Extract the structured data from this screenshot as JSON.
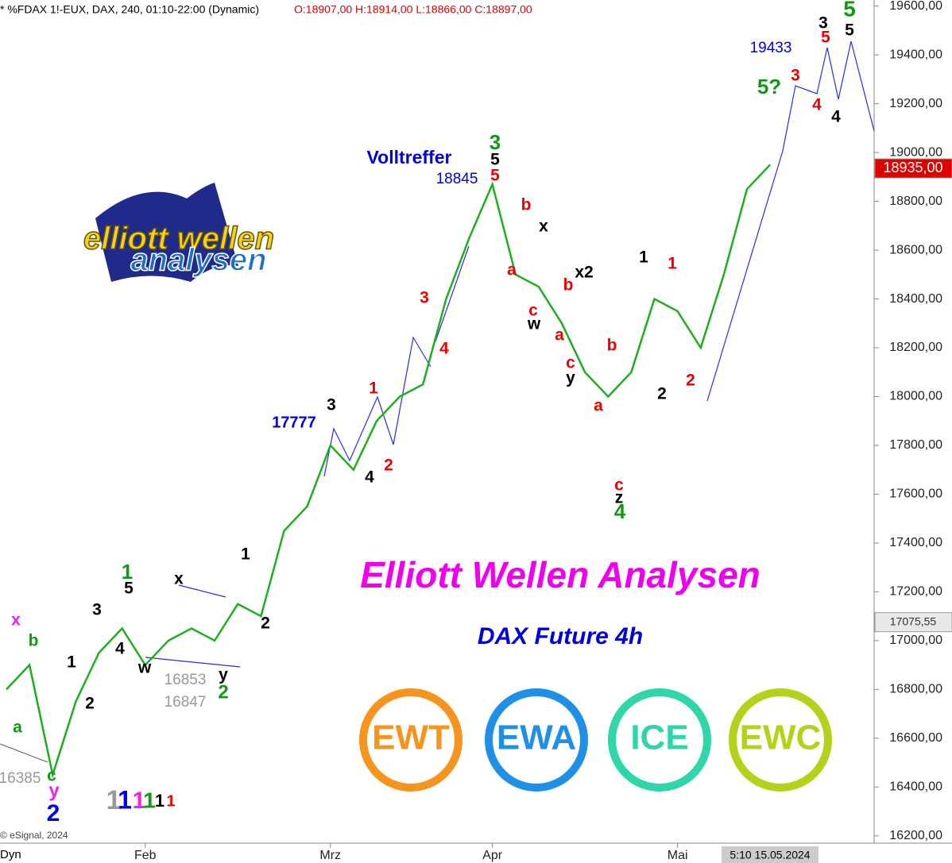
{
  "chart_data": {
    "type": "line",
    "title": "* %FDAX 1!-EUX, DAX, 240, 01:10-22:00 (Dynamic)",
    "ohlc_text": "O:18907,00 H:18914,00 L:18866,00 C:18897,00",
    "categories": [
      null,
      null,
      null,
      null,
      null,
      null,
      "Feb",
      null,
      null,
      null,
      null,
      null,
      null,
      null,
      "Mrz",
      null,
      null,
      null,
      null,
      null,
      null,
      "Apr",
      null,
      null,
      null,
      null,
      null,
      null,
      null,
      "Mai",
      null,
      null,
      null,
      null
    ],
    "series": [
      {
        "name": "FDAX",
        "color": "#1fae1f",
        "values": [
          16800,
          16900,
          16450,
          16750,
          16950,
          17050,
          16900,
          17000,
          17050,
          17000,
          17150,
          17100,
          17450,
          17550,
          17800,
          17700,
          17900,
          18000,
          18050,
          18400,
          18650,
          18870,
          18500,
          18450,
          18300,
          18100,
          18000,
          18100,
          18400,
          18350,
          18200,
          18500,
          18850,
          18950
        ]
      }
    ],
    "ylim": [
      16170,
      19625
    ],
    "yticks": [
      {
        "value": 16200,
        "label": "16200,00"
      },
      {
        "value": 16400,
        "label": "16400,00"
      },
      {
        "value": 16600,
        "label": "16600,00"
      },
      {
        "value": 16800,
        "label": "16800,00"
      },
      {
        "value": 17000,
        "label": "17000,00"
      },
      {
        "value": 17200,
        "label": "17200,00"
      },
      {
        "value": 17400,
        "label": "17400,00"
      },
      {
        "value": 17600,
        "label": "17600,00"
      },
      {
        "value": 17800,
        "label": "17800,00"
      },
      {
        "value": 18000,
        "label": "18000,00"
      },
      {
        "value": 18200,
        "label": "18200,00"
      },
      {
        "value": 18400,
        "label": "18400,00"
      },
      {
        "value": 18600,
        "label": "18600,00"
      },
      {
        "value": 18800,
        "label": "18800,00"
      },
      {
        "value": 19000,
        "label": "19000,00"
      },
      {
        "value": 19200,
        "label": "19200,00"
      },
      {
        "value": 19400,
        "label": "19400,00"
      },
      {
        "value": 19600,
        "label": "19600,00"
      }
    ],
    "price_markers": [
      {
        "value": 18935,
        "label": "18935,00",
        "color": "#e00000"
      },
      {
        "value": 17075.55,
        "label": "17075,55",
        "color": "#e8e8e8"
      }
    ],
    "annotations": [
      {
        "text": "x",
        "color": "#ee22ee"
      },
      {
        "text": "b",
        "color": "#119911"
      },
      {
        "text": "a",
        "color": "#119911"
      },
      {
        "text": "c",
        "color": "#119911"
      },
      {
        "text": "y",
        "color": "#ee22ee"
      },
      {
        "text": "2",
        "color": "#0000ee"
      },
      {
        "text": "16385",
        "color": "#999999"
      },
      {
        "text": "1",
        "color": "#000000"
      },
      {
        "text": "2",
        "color": "#000000"
      },
      {
        "text": "3",
        "color": "#000000"
      },
      {
        "text": "1",
        "color": "#119911"
      },
      {
        "text": "5",
        "color": "#000000"
      },
      {
        "text": "4",
        "color": "#000000"
      },
      {
        "text": "w",
        "color": "#000000"
      },
      {
        "text": "x",
        "color": "#000000"
      },
      {
        "text": "16853",
        "color": "#999999"
      },
      {
        "text": "16847",
        "color": "#999999"
      },
      {
        "text": "y",
        "color": "#000000"
      },
      {
        "text": "2",
        "color": "#119911"
      },
      {
        "text": "1",
        "color": "#000000"
      },
      {
        "text": "2",
        "color": "#000000"
      },
      {
        "text": "17777",
        "color": "#0000dd"
      },
      {
        "text": "3",
        "color": "#000000"
      },
      {
        "text": "4",
        "color": "#000000"
      },
      {
        "text": "1",
        "color": "#ee0000"
      },
      {
        "text": "2",
        "color": "#ee0000"
      },
      {
        "text": "3",
        "color": "#ee0000"
      },
      {
        "text": "4",
        "color": "#ee0000"
      },
      {
        "text": "Volltreffer",
        "color": "#0000dd"
      },
      {
        "text": "18845",
        "color": "#0000dd"
      },
      {
        "text": "3",
        "color": "#119911"
      },
      {
        "text": "5",
        "color": "#000000"
      },
      {
        "text": "5",
        "color": "#ee0000"
      },
      {
        "text": "b",
        "color": "#ee0000"
      },
      {
        "text": "x",
        "color": "#000000"
      },
      {
        "text": "a",
        "color": "#ee0000"
      },
      {
        "text": "b",
        "color": "#ee0000"
      },
      {
        "text": "x2",
        "color": "#000000"
      },
      {
        "text": "c",
        "color": "#ee0000"
      },
      {
        "text": "w",
        "color": "#000000"
      },
      {
        "text": "a",
        "color": "#ee0000"
      },
      {
        "text": "c",
        "color": "#ee0000"
      },
      {
        "text": "y",
        "color": "#000000"
      },
      {
        "text": "b",
        "color": "#ee0000"
      },
      {
        "text": "a",
        "color": "#ee0000"
      },
      {
        "text": "c",
        "color": "#ee0000"
      },
      {
        "text": "z",
        "color": "#000000"
      },
      {
        "text": "4",
        "color": "#119911"
      },
      {
        "text": "1",
        "color": "#000000"
      },
      {
        "text": "1",
        "color": "#ee0000"
      },
      {
        "text": "2",
        "color": "#000000"
      },
      {
        "text": "2",
        "color": "#ee0000"
      },
      {
        "text": "19433",
        "color": "#0000dd"
      },
      {
        "text": "5?",
        "color": "#119911"
      },
      {
        "text": "3",
        "color": "#ee0000"
      },
      {
        "text": "3",
        "color": "#000000"
      },
      {
        "text": "5",
        "color": "#ee0000"
      },
      {
        "text": "5",
        "color": "#119911"
      },
      {
        "text": "5",
        "color": "#000000"
      },
      {
        "text": "4",
        "color": "#ee0000"
      },
      {
        "text": "4",
        "color": "#000000"
      },
      {
        "text": "1",
        "color": "#999999"
      },
      {
        "text": "1",
        "color": "#0000ee"
      },
      {
        "text": "1",
        "color": "#ee22ee"
      },
      {
        "text": "1",
        "color": "#119911"
      },
      {
        "text": "1",
        "color": "#000000"
      },
      {
        "text": "1",
        "color": "#ee0000"
      }
    ],
    "headline": "Elliott Wellen Analysen",
    "subheadline": "DAX Future 4h",
    "logo": [
      "elliott wellen",
      "analysen"
    ],
    "badges": [
      {
        "text": "EWT",
        "color": "#f7941d"
      },
      {
        "text": "EWA",
        "color": "#1e90e8"
      },
      {
        "text": "ICE",
        "color": "#2fd6a8"
      },
      {
        "text": "EWC",
        "color": "#b5d11a"
      }
    ],
    "copyright": "© eSignal, 2024",
    "footer_left": "Dyn",
    "footer_time": "5:10 15.05.2024"
  }
}
